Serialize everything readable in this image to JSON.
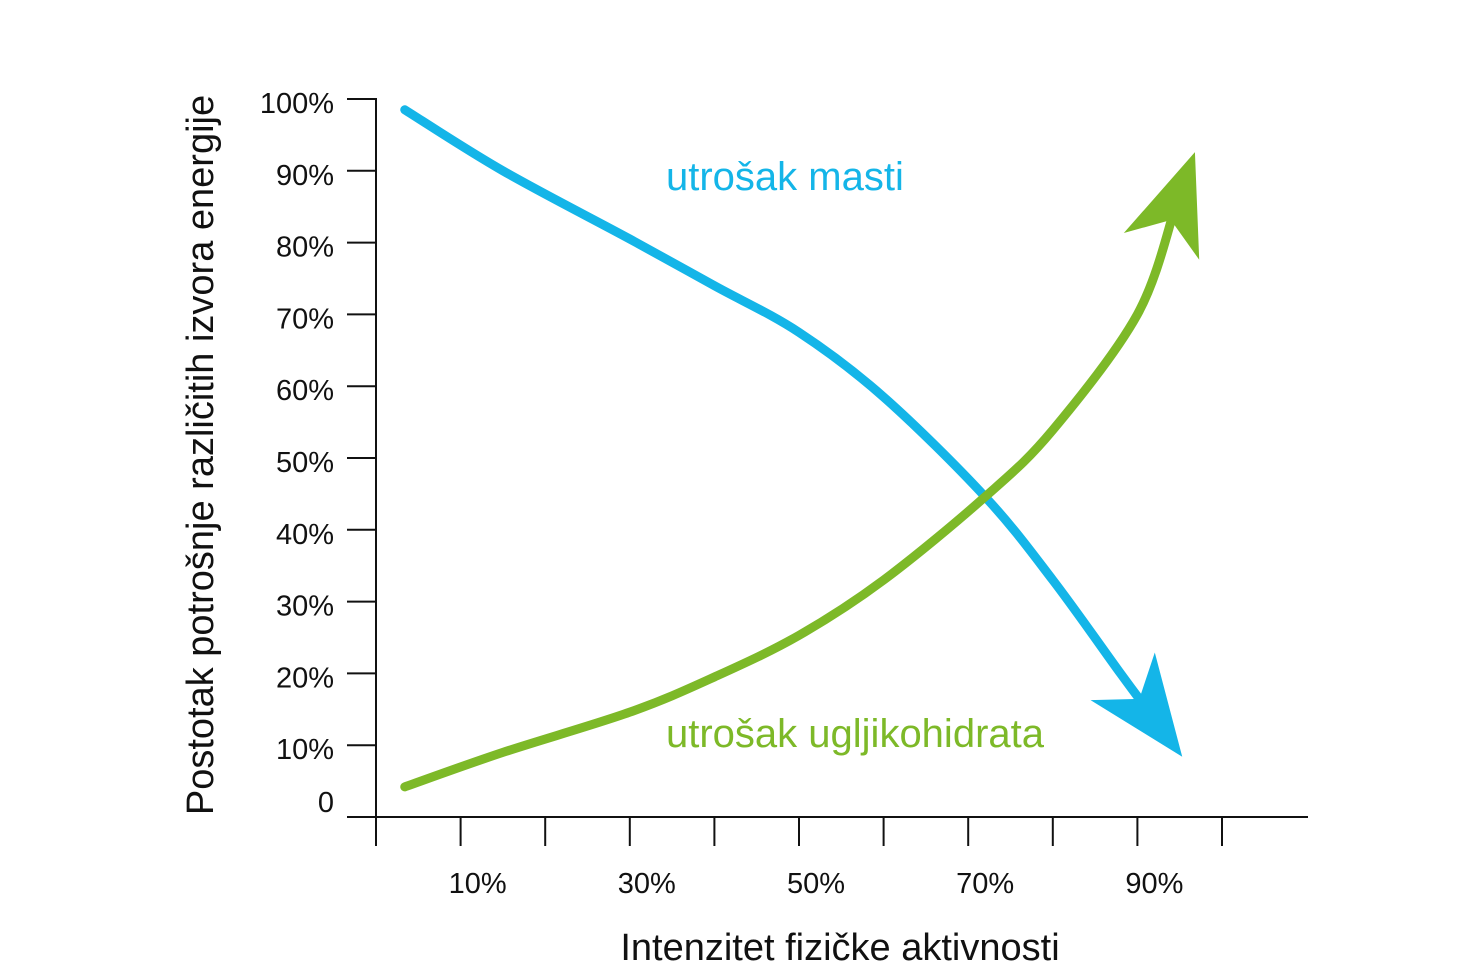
{
  "chart_data": {
    "type": "line",
    "title": "",
    "xlabel": "Intenzitet fizičke aktivnosti",
    "ylabel": "Postotak potrošnje različitih izvora energije",
    "xlim": [
      0,
      110
    ],
    "ylim": [
      0,
      100
    ],
    "x_tick_labels": [
      {
        "value": 10,
        "label": "10%"
      },
      {
        "value": 30,
        "label": "30%"
      },
      {
        "value": 50,
        "label": "50%"
      },
      {
        "value": 70,
        "label": "70%"
      },
      {
        "value": 90,
        "label": "90%"
      }
    ],
    "x_tick_marks": [
      0,
      10,
      20,
      30,
      40,
      50,
      60,
      70,
      80,
      90,
      100
    ],
    "y_ticks": [
      {
        "value": 0,
        "label": "0"
      },
      {
        "value": 10,
        "label": "10%"
      },
      {
        "value": 20,
        "label": "20%"
      },
      {
        "value": 30,
        "label": "30%"
      },
      {
        "value": 40,
        "label": "40%"
      },
      {
        "value": 50,
        "label": "50%"
      },
      {
        "value": 60,
        "label": "60%"
      },
      {
        "value": 70,
        "label": "70%"
      },
      {
        "value": 80,
        "label": "80%"
      },
      {
        "value": 90,
        "label": "90%"
      },
      {
        "value": 100,
        "label": "100%"
      }
    ],
    "grid": false,
    "series": [
      {
        "name": "utrošak masti",
        "color": "#14b5e8",
        "points": [
          [
            3.4,
            98.5
          ],
          [
            15,
            90
          ],
          [
            30,
            80.5
          ],
          [
            40,
            74
          ],
          [
            50,
            67.5
          ],
          [
            60,
            58.5
          ],
          [
            72,
            44.6
          ],
          [
            80,
            33
          ],
          [
            88,
            20
          ],
          [
            95.3,
            8.4
          ]
        ],
        "arrow_end": true
      },
      {
        "name": "utrošak ugljikohidrata",
        "color": "#7db928",
        "points": [
          [
            3.4,
            4.2
          ],
          [
            15,
            9
          ],
          [
            30,
            14.6
          ],
          [
            40,
            19.5
          ],
          [
            50,
            25.3
          ],
          [
            60,
            33
          ],
          [
            72,
            44.6
          ],
          [
            80,
            53.9
          ],
          [
            90,
            70
          ],
          [
            96.8,
            92.6
          ]
        ],
        "arrow_end": true
      }
    ]
  }
}
